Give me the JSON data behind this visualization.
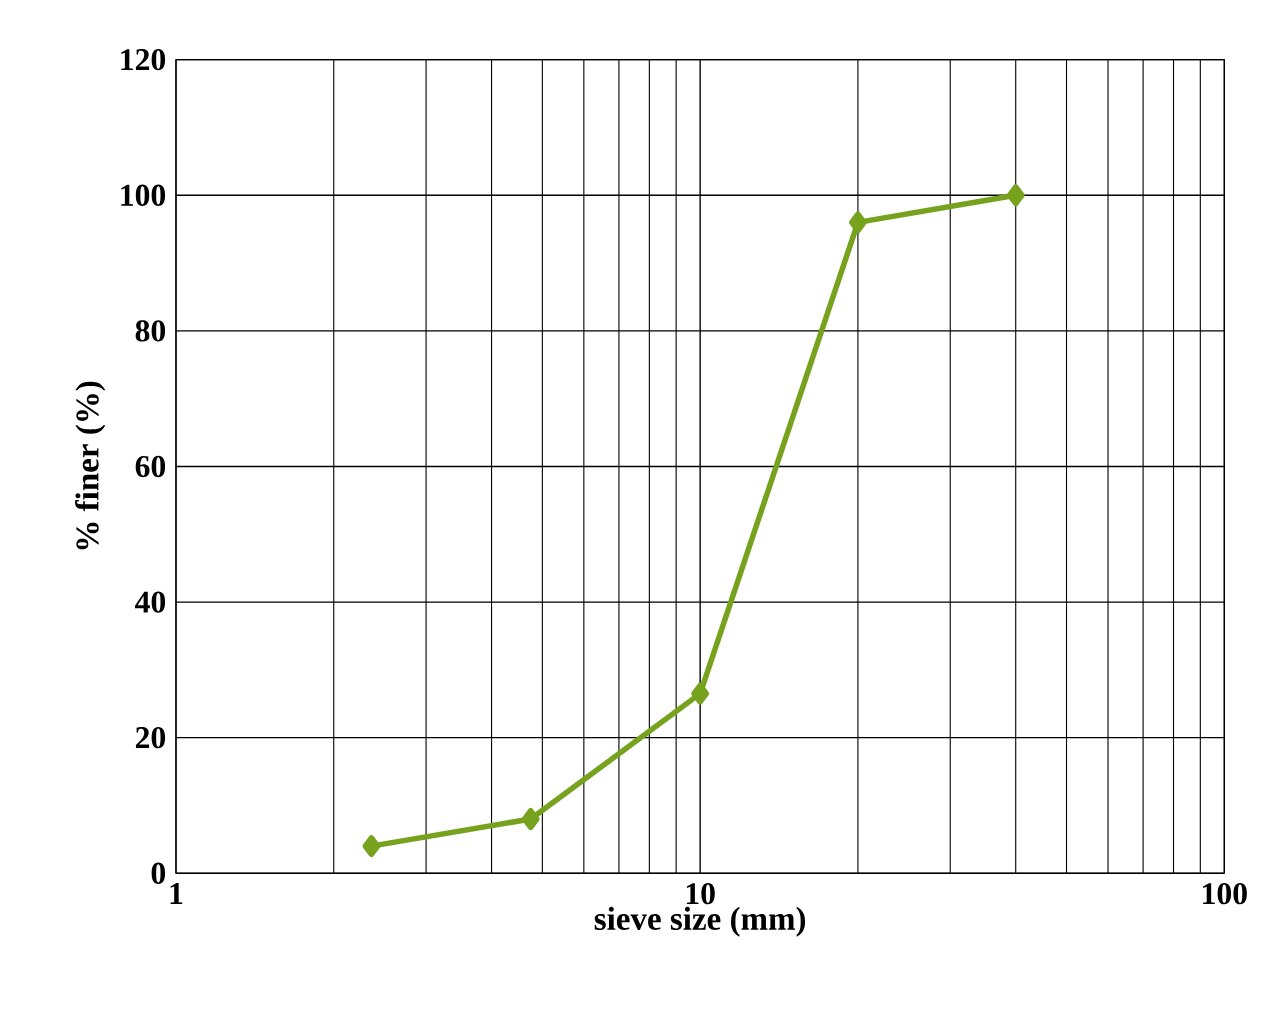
{
  "chart_data": {
    "type": "line",
    "xlabel": "sieve size (mm)",
    "ylabel": "% finer (%)",
    "x": [
      2.36,
      4.75,
      10,
      20,
      40
    ],
    "series": [
      {
        "color": "#76a21e",
        "values": [
          4,
          8,
          26.5,
          96,
          100
        ]
      }
    ],
    "log": "x",
    "xlim": [
      1,
      100
    ],
    "xticks": [
      1,
      10,
      100
    ],
    "ylim": [
      0,
      120
    ],
    "yticks": [
      0,
      20,
      40,
      60,
      80,
      100,
      120
    ],
    "grid": true,
    "marker": "diamond",
    "line_style": "solid"
  }
}
